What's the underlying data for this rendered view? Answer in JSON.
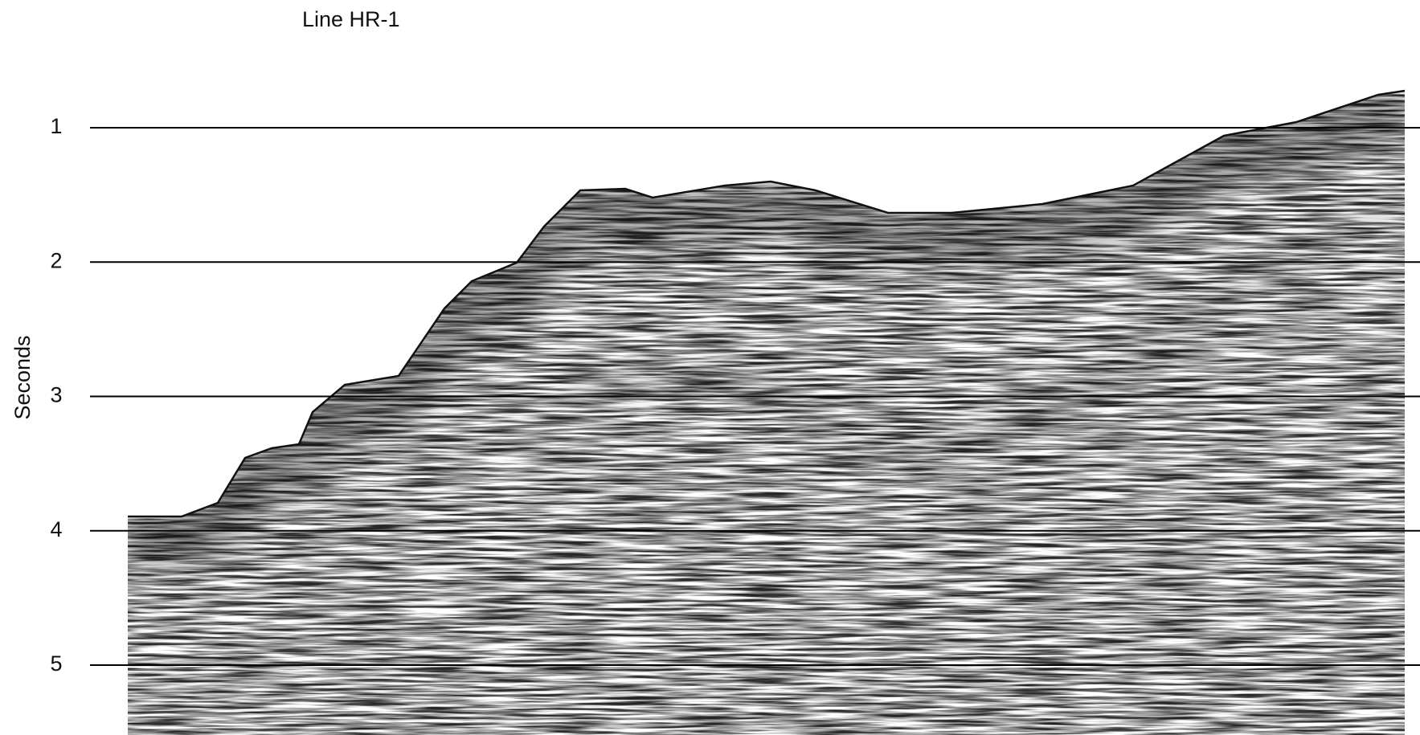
{
  "chart_data": {
    "type": "seismic",
    "title": "Line HR-1",
    "y_label": "Seconds",
    "ylim": [
      1,
      5
    ],
    "yticks": [
      1,
      2,
      3,
      4,
      5
    ],
    "grid": true,
    "grid_color": "#000000"
  }
}
